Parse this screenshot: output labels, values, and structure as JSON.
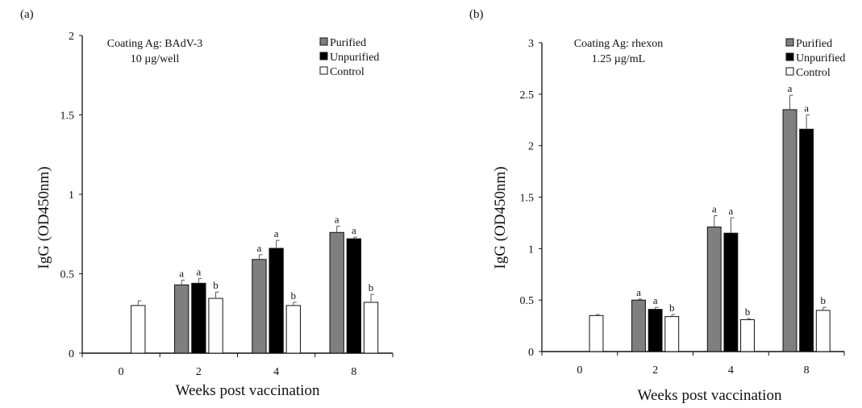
{
  "chart_data": [
    {
      "type": "bar",
      "panel_label": "(a)",
      "annotation": [
        "Coating Ag: BAdV-3",
        "10 µg/well"
      ],
      "xlabel": "Weeks post vaccination",
      "ylabel": "IgG (OD450nm)",
      "categories": [
        "0",
        "2",
        "4",
        "8"
      ],
      "ylim": [
        0,
        2
      ],
      "yticks": [
        "0",
        "0.5",
        "1",
        "1.5",
        "2"
      ],
      "ytick_values": [
        0,
        0.5,
        1,
        1.5,
        2
      ],
      "grid": false,
      "legend_position": "top-right",
      "series": [
        {
          "name": "Purified",
          "color": "#7f7f7f",
          "values": [
            null,
            0.43,
            0.59,
            0.76
          ],
          "errors": [
            null,
            0.03,
            0.03,
            0.04
          ],
          "letters": [
            "",
            "a",
            "a",
            "a"
          ]
        },
        {
          "name": "Unpurified",
          "color": "#000000",
          "values": [
            null,
            0.44,
            0.66,
            0.72
          ],
          "errors": [
            null,
            0.03,
            0.05,
            0.01
          ],
          "letters": [
            "",
            "a",
            "a",
            "a"
          ]
        },
        {
          "name": "Control",
          "color": "#ffffff",
          "values": [
            0.3,
            0.345,
            0.3,
            0.32
          ],
          "errors": [
            0.03,
            0.04,
            0.02,
            0.05
          ],
          "letters": [
            "",
            "b",
            "b",
            "b"
          ]
        }
      ]
    },
    {
      "type": "bar",
      "panel_label": "(b)",
      "annotation": [
        "Coating Ag: rhexon",
        "1.25 µg/mL"
      ],
      "xlabel": "Weeks post vaccination",
      "ylabel": "IgG (OD450nm)",
      "categories": [
        "0",
        "2",
        "4",
        "8"
      ],
      "ylim": [
        0,
        3
      ],
      "yticks": [
        "0",
        "0.5",
        "1",
        "1.5",
        "2",
        "2.5",
        "3"
      ],
      "ytick_values": [
        0,
        0.5,
        1,
        1.5,
        2,
        2.5,
        3
      ],
      "grid": false,
      "legend_position": "top-right",
      "series": [
        {
          "name": "Purified",
          "color": "#7f7f7f",
          "values": [
            null,
            0.5,
            1.21,
            2.35
          ],
          "errors": [
            null,
            0.01,
            0.11,
            0.14
          ],
          "letters": [
            "",
            "a",
            "a",
            "a"
          ]
        },
        {
          "name": "Unpurified",
          "color": "#000000",
          "values": [
            null,
            0.41,
            1.15,
            2.16
          ],
          "errors": [
            null,
            0.02,
            0.15,
            0.14
          ],
          "letters": [
            "",
            "a",
            "a",
            "a"
          ]
        },
        {
          "name": "Control",
          "color": "#ffffff",
          "values": [
            0.35,
            0.34,
            0.31,
            0.4
          ],
          "errors": [
            0.01,
            0.02,
            0.01,
            0.03
          ],
          "letters": [
            "",
            "b",
            "b",
            "b"
          ]
        }
      ]
    }
  ]
}
